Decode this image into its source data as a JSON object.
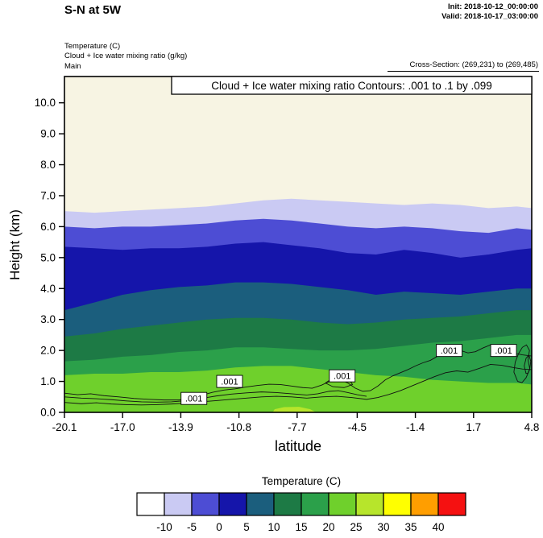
{
  "header": {
    "title": "S-N at 5W",
    "init_label": "Init: 2018-10-12_00:00:00",
    "valid_label": "Valid: 2018-10-17_03:00:00",
    "field_lines": [
      "Temperature  (C)",
      "Cloud + Ice water mixing ratio  (g/kg)",
      "Main"
    ],
    "cross_section": "Cross-Section: (269,231) to (269,485)"
  },
  "chart_data": {
    "type": "filled_contour_cross_section",
    "title": "Cloud + Ice water mixing ratio Contours: .001 to .1 by .099",
    "xlabel": "latitude",
    "ylabel": "Height (km)",
    "xlim": [
      -20.1,
      4.8
    ],
    "ylim": [
      0,
      10.85
    ],
    "x_ticks": [
      -20.1,
      -17.0,
      -13.9,
      -10.8,
      -7.7,
      -4.5,
      -1.4,
      1.7,
      4.8
    ],
    "x_tick_labels": [
      "-20.1",
      "-17.0",
      "-13.9",
      "-10.8",
      "-7.7",
      "-4.5",
      "-1.4",
      "1.7",
      "4.8"
    ],
    "y_ticks": [
      0,
      1,
      2,
      3,
      4,
      5,
      6,
      7,
      8,
      9,
      10
    ],
    "y_tick_labels": [
      "0.0",
      "1.0",
      "2.0",
      "3.0",
      "4.0",
      "5.0",
      "6.0",
      "7.0",
      "8.0",
      "9.0",
      "10.0"
    ],
    "background_color": "#f7f4e3",
    "band_x": [
      -20.1,
      -18.5,
      -17,
      -15.5,
      -14,
      -12.5,
      -11,
      -9.5,
      -8,
      -6.5,
      -5,
      -3.5,
      -2,
      -0.5,
      1,
      2.5,
      4,
      4.8
    ],
    "temperature_bands": [
      {
        "range": "-10 to -5",
        "color": "#cacaf3",
        "top": [
          6.5,
          6.45,
          6.5,
          6.55,
          6.6,
          6.65,
          6.75,
          6.85,
          6.9,
          6.85,
          6.8,
          6.75,
          6.7,
          6.75,
          6.7,
          6.6,
          6.65,
          6.6
        ]
      },
      {
        "range": "-5 to 0",
        "color": "#4d4dd4",
        "top": [
          6.0,
          5.95,
          6.0,
          6.0,
          6.05,
          6.1,
          6.2,
          6.25,
          6.2,
          6.1,
          6.0,
          5.95,
          6.0,
          5.95,
          5.85,
          5.8,
          5.95,
          5.9
        ]
      },
      {
        "range": "0 to 5",
        "color": "#1515aa",
        "top": [
          5.35,
          5.3,
          5.25,
          5.3,
          5.3,
          5.35,
          5.45,
          5.5,
          5.4,
          5.3,
          5.15,
          5.1,
          5.25,
          5.15,
          5.0,
          5.1,
          5.25,
          5.3
        ]
      },
      {
        "range": "5 to 10",
        "color": "#1b5e7d",
        "top": [
          3.3,
          3.55,
          3.8,
          3.95,
          4.05,
          4.1,
          4.2,
          4.2,
          4.15,
          4.05,
          3.95,
          3.8,
          3.9,
          3.85,
          3.8,
          3.9,
          4.0,
          4.0
        ]
      },
      {
        "range": "10 to 15",
        "color": "#1d7a45",
        "top": [
          2.45,
          2.55,
          2.7,
          2.8,
          2.9,
          3.0,
          3.05,
          3.05,
          3.0,
          2.9,
          2.85,
          2.9,
          3.0,
          3.05,
          3.1,
          3.2,
          3.3,
          3.3
        ]
      },
      {
        "range": "15 to 20",
        "color": "#2ba04a",
        "top": [
          1.65,
          1.7,
          1.8,
          1.85,
          1.95,
          2.0,
          2.1,
          2.1,
          2.05,
          2.0,
          2.0,
          2.05,
          2.15,
          2.25,
          2.3,
          2.4,
          2.5,
          2.5
        ]
      },
      {
        "range": "20 to 25",
        "color": "#6fd02c",
        "top": [
          1.2,
          1.25,
          1.25,
          1.3,
          1.3,
          1.35,
          1.45,
          1.5,
          1.5,
          1.4,
          1.3,
          1.2,
          1.15,
          1.05,
          1.0,
          0.95,
          0.95,
          0.9
        ]
      }
    ],
    "surface_patch": {
      "range": "25 to 30",
      "color": "#b7e52b",
      "points": [
        [
          -9.0,
          0.0
        ],
        [
          -8.9,
          0.1
        ],
        [
          -8.4,
          0.17
        ],
        [
          -7.6,
          0.18
        ],
        [
          -7.0,
          0.1
        ],
        [
          -6.7,
          0.0
        ]
      ]
    },
    "cloud_contours": {
      "contour_values": [
        0.001,
        0.1
      ],
      "label": ".001",
      "label_positions": [
        [
          -13.2,
          0.45
        ],
        [
          -11.3,
          1.0
        ],
        [
          -5.3,
          1.18
        ],
        [
          0.4,
          2.0
        ],
        [
          3.3,
          2.0
        ]
      ],
      "lines": [
        [
          [
            -20.1,
            0.62
          ],
          [
            -19.4,
            0.57
          ],
          [
            -18.7,
            0.6
          ],
          [
            -18,
            0.54
          ],
          [
            -17.2,
            0.5
          ],
          [
            -16.4,
            0.45
          ],
          [
            -15.6,
            0.42
          ],
          [
            -14.8,
            0.4
          ],
          [
            -14,
            0.4
          ],
          [
            -13.4,
            0.44
          ],
          [
            -12.8,
            0.55
          ],
          [
            -12.2,
            0.65
          ],
          [
            -11.6,
            0.72
          ],
          [
            -11,
            0.76
          ],
          [
            -10.4,
            0.82
          ],
          [
            -9.8,
            0.87
          ],
          [
            -9.2,
            0.91
          ],
          [
            -8.6,
            0.9
          ],
          [
            -8,
            0.85
          ],
          [
            -7.4,
            0.8
          ],
          [
            -6.9,
            0.78
          ],
          [
            -6.4,
            0.88
          ],
          [
            -5.9,
            1.02
          ],
          [
            -5.4,
            1.05
          ],
          [
            -5,
            0.95
          ],
          [
            -4.6,
            0.78
          ],
          [
            -4.2,
            0.68
          ],
          [
            -3.8,
            0.7
          ],
          [
            -3.4,
            0.85
          ],
          [
            -3,
            1.05
          ],
          [
            -2.6,
            1.18
          ],
          [
            -2.2,
            1.28
          ],
          [
            -1.8,
            1.38
          ],
          [
            -1.4,
            1.5
          ],
          [
            -1,
            1.6
          ],
          [
            -0.6,
            1.68
          ],
          [
            -0.2,
            1.82
          ],
          [
            0.2,
            1.95
          ],
          [
            0.6,
            2.05
          ],
          [
            1,
            2.0
          ],
          [
            1.4,
            1.92
          ],
          [
            1.8,
            1.96
          ],
          [
            2.2,
            2.08
          ],
          [
            2.6,
            2.18
          ],
          [
            3,
            2.14
          ],
          [
            3.4,
            2.02
          ],
          [
            3.8,
            1.92
          ],
          [
            4.3,
            1.86
          ],
          [
            4.8,
            1.82
          ]
        ],
        [
          [
            -20.1,
            0.32
          ],
          [
            -19.2,
            0.28
          ],
          [
            -18.4,
            0.31
          ],
          [
            -17.6,
            0.27
          ],
          [
            -16.8,
            0.25
          ],
          [
            -16,
            0.24
          ],
          [
            -15.2,
            0.25
          ],
          [
            -14.4,
            0.27
          ],
          [
            -13.6,
            0.3
          ],
          [
            -12.8,
            0.34
          ],
          [
            -12,
            0.38
          ],
          [
            -11.2,
            0.42
          ],
          [
            -10.4,
            0.46
          ],
          [
            -9.6,
            0.5
          ],
          [
            -8.8,
            0.52
          ],
          [
            -8,
            0.5
          ],
          [
            -7.2,
            0.46
          ],
          [
            -6.4,
            0.5
          ],
          [
            -5.6,
            0.52
          ],
          [
            -4.8,
            0.48
          ],
          [
            -4,
            0.42
          ],
          [
            -3.4,
            0.48
          ],
          [
            -2.8,
            0.58
          ],
          [
            -2.2,
            0.7
          ],
          [
            -1.6,
            0.85
          ],
          [
            -1,
            1.0
          ],
          [
            -0.4,
            1.15
          ],
          [
            0.2,
            1.28
          ],
          [
            0.8,
            1.34
          ],
          [
            1.4,
            1.3
          ],
          [
            2,
            1.42
          ],
          [
            2.6,
            1.55
          ],
          [
            3.2,
            1.52
          ],
          [
            3.8,
            1.45
          ],
          [
            4.3,
            1.4
          ],
          [
            4.8,
            1.38
          ]
        ],
        [
          [
            -20.1,
            0.5
          ],
          [
            -19.2,
            0.46
          ],
          [
            -18.4,
            0.44
          ],
          [
            -17.6,
            0.41
          ],
          [
            -16.8,
            0.37
          ],
          [
            -16,
            0.34
          ],
          [
            -15.2,
            0.33
          ],
          [
            -14.4,
            0.34
          ],
          [
            -13.6,
            0.38
          ],
          [
            -12.8,
            0.45
          ],
          [
            -12,
            0.53
          ],
          [
            -11.2,
            0.59
          ],
          [
            -10.4,
            0.63
          ],
          [
            -9.6,
            0.66
          ],
          [
            -8.8,
            0.64
          ],
          [
            -8,
            0.6
          ],
          [
            -7.2,
            0.56
          ],
          [
            -6.6,
            0.6
          ],
          [
            -6,
            0.68
          ],
          [
            -5.5,
            0.7
          ],
          [
            -5,
            0.64
          ],
          [
            -4.5,
            0.57
          ],
          [
            -4,
            0.52
          ]
        ],
        [
          [
            4.05,
            1.0
          ],
          [
            3.85,
            1.3
          ],
          [
            3.92,
            1.62
          ],
          [
            4.1,
            1.9
          ],
          [
            4.3,
            2.1
          ],
          [
            4.52,
            2.18
          ],
          [
            4.68,
            2.0
          ],
          [
            4.6,
            1.7
          ],
          [
            4.7,
            1.4
          ],
          [
            4.5,
            1.12
          ],
          [
            4.28,
            0.96
          ],
          [
            4.05,
            1.0
          ]
        ],
        [
          [
            4.5,
            1.25
          ],
          [
            4.4,
            1.5
          ],
          [
            4.5,
            1.75
          ],
          [
            4.65,
            1.85
          ],
          [
            4.75,
            1.65
          ],
          [
            4.7,
            1.42
          ],
          [
            4.6,
            1.27
          ],
          [
            4.5,
            1.25
          ]
        ],
        [
          [
            -6.2,
            0.95
          ],
          [
            -5.8,
            1.1
          ],
          [
            -5.3,
            1.15
          ],
          [
            -4.9,
            1.03
          ],
          [
            -4.75,
            0.9
          ],
          [
            -5.2,
            0.8
          ],
          [
            -5.8,
            0.83
          ],
          [
            -6.2,
            0.95
          ]
        ]
      ]
    },
    "legend": {
      "title": "Temperature  (C)",
      "colors": [
        "#ffffff",
        "#cacaf3",
        "#4d4dd4",
        "#1515aa",
        "#1b5e7d",
        "#1d7a45",
        "#2ba04a",
        "#6fd02c",
        "#b7e52b",
        "#ffff00",
        "#ff9e00",
        "#f51111"
      ],
      "boundary_labels": [
        "-10",
        "-5",
        "0",
        "5",
        "10",
        "15",
        "20",
        "25",
        "30",
        "35",
        "40"
      ]
    }
  }
}
